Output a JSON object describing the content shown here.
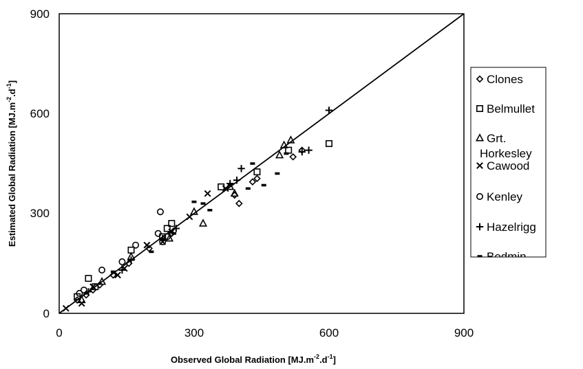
{
  "chart_data": {
    "type": "scatter",
    "xlabel": "Observed Global Radiation [MJ.m",
    "xlabel_sup1": "-2",
    "xlabel_mid": ".d",
    "xlabel_sup2": "-1",
    "xlabel_end": "]",
    "ylabel": "Estimated Global Radiation [MJ.m",
    "ylabel_sup1": "-2",
    "ylabel_mid": ".d",
    "ylabel_sup2": "-1",
    "ylabel_end": "]",
    "xlim": [
      0,
      900
    ],
    "ylim": [
      0,
      900
    ],
    "x_ticks": [
      "0",
      "300",
      "600",
      "900"
    ],
    "y_ticks": [
      "0",
      "300",
      "600",
      "900"
    ],
    "grid": false,
    "legend_position": "right",
    "reference_line": {
      "x": [
        0,
        900
      ],
      "y": [
        0,
        900
      ]
    },
    "series": [
      {
        "name": "Clones",
        "marker": "diamond",
        "points": [
          [
            40,
            40
          ],
          [
            60,
            55
          ],
          [
            75,
            70
          ],
          [
            90,
            85
          ],
          [
            120,
            115
          ],
          [
            155,
            150
          ],
          [
            200,
            195
          ],
          [
            250,
            240
          ],
          [
            390,
            355
          ],
          [
            400,
            330
          ],
          [
            430,
            395
          ],
          [
            440,
            405
          ],
          [
            520,
            470
          ],
          [
            540,
            490
          ]
        ]
      },
      {
        "name": "Belmullet",
        "marker": "square",
        "points": [
          [
            40,
            50
          ],
          [
            65,
            105
          ],
          [
            80,
            80
          ],
          [
            160,
            190
          ],
          [
            230,
            230
          ],
          [
            240,
            255
          ],
          [
            250,
            270
          ],
          [
            360,
            380
          ],
          [
            440,
            425
          ],
          [
            510,
            490
          ],
          [
            600,
            510
          ]
        ]
      },
      {
        "name": "Grt. Horkesley",
        "marker": "triangle",
        "points": [
          [
            50,
            40
          ],
          [
            95,
            95
          ],
          [
            160,
            170
          ],
          [
            245,
            225
          ],
          [
            300,
            305
          ],
          [
            320,
            270
          ],
          [
            380,
            380
          ],
          [
            390,
            360
          ],
          [
            490,
            475
          ],
          [
            500,
            505
          ],
          [
            515,
            520
          ]
        ]
      },
      {
        "name": "Cawood",
        "marker": "x",
        "points": [
          [
            15,
            15
          ],
          [
            50,
            30
          ],
          [
            75,
            80
          ],
          [
            130,
            115
          ],
          [
            145,
            135
          ],
          [
            195,
            205
          ],
          [
            230,
            215
          ],
          [
            250,
            245
          ],
          [
            290,
            290
          ],
          [
            330,
            360
          ],
          [
            370,
            375
          ]
        ]
      },
      {
        "name": "Kenley",
        "marker": "circle",
        "points": [
          [
            45,
            60
          ],
          [
            55,
            70
          ],
          [
            95,
            130
          ],
          [
            140,
            155
          ],
          [
            170,
            205
          ],
          [
            220,
            240
          ],
          [
            225,
            305
          ],
          [
            230,
            215
          ],
          [
            240,
            230
          ]
        ]
      },
      {
        "name": "Hazelrigg",
        "marker": "plus",
        "points": [
          [
            65,
            65
          ],
          [
            140,
            130
          ],
          [
            160,
            160
          ],
          [
            230,
            225
          ],
          [
            260,
            255
          ],
          [
            380,
            390
          ],
          [
            395,
            400
          ],
          [
            405,
            435
          ],
          [
            540,
            485
          ],
          [
            555,
            490
          ],
          [
            600,
            610
          ]
        ]
      },
      {
        "name": "Bodmin",
        "marker": "dash",
        "points": [
          [
            60,
            60
          ],
          [
            120,
            125
          ],
          [
            205,
            185
          ],
          [
            255,
            240
          ],
          [
            300,
            335
          ],
          [
            320,
            330
          ],
          [
            335,
            310
          ],
          [
            380,
            385
          ],
          [
            420,
            375
          ],
          [
            430,
            450
          ],
          [
            455,
            385
          ],
          [
            485,
            420
          ],
          [
            505,
            480
          ]
        ]
      }
    ]
  },
  "legend": {
    "items": [
      "Clones",
      "Belmullet",
      "Grt.",
      "Horkesley",
      "Cawood",
      "Kenley",
      "Hazelrigg",
      "Bodmin"
    ]
  },
  "colors": {
    "ink": "#000000",
    "background": "#ffffff"
  }
}
